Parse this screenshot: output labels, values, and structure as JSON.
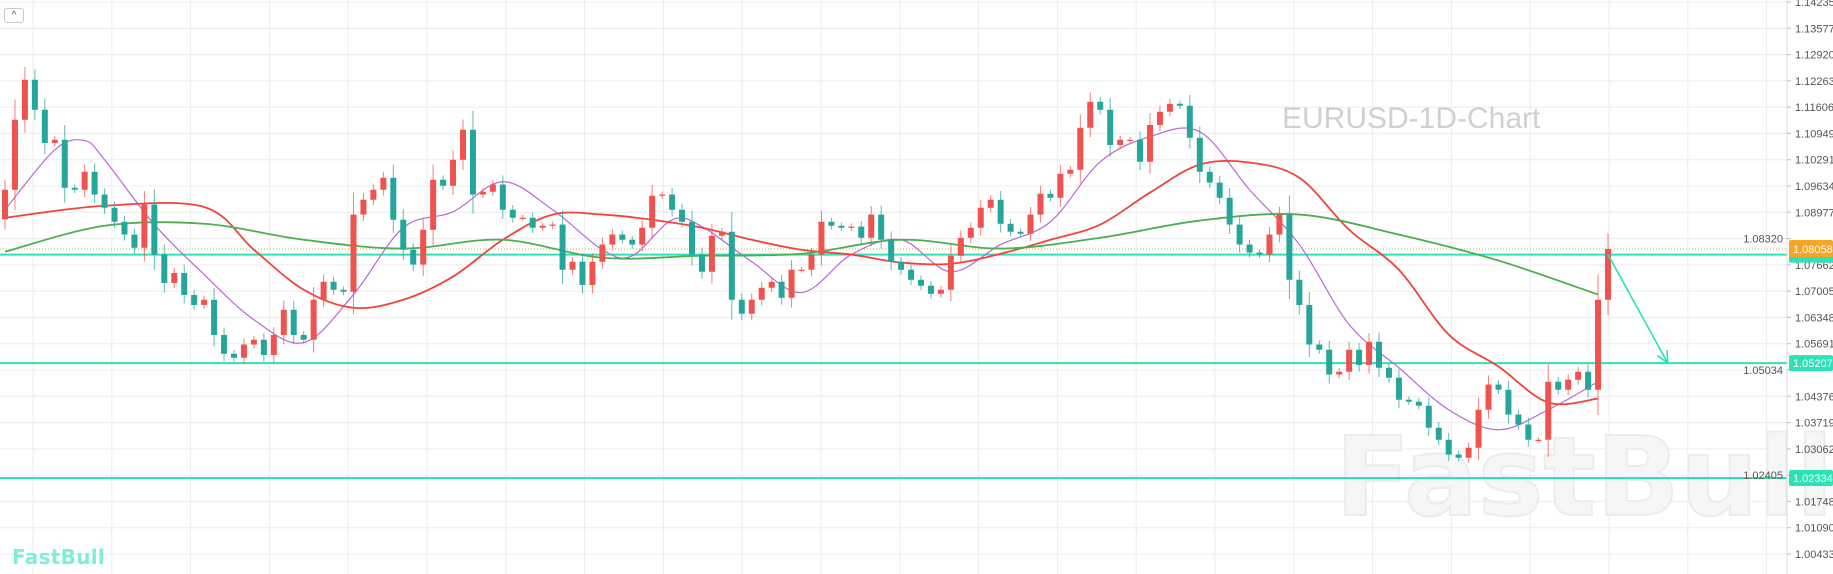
{
  "controls": {
    "collapse_icon": "chevron-up-icon",
    "collapse_glyph": "^"
  },
  "brand": {
    "logo_text": "FastBull",
    "logo_color": "#7eefd6",
    "watermark": "FastBull"
  },
  "chart_data": {
    "type": "candlestick",
    "title": "EURUSD-1D-Chart",
    "colors": {
      "up": "#ef5350",
      "down": "#26a69a"
    },
    "ylim": [
      1.00433,
      1.14235
    ],
    "grid": true,
    "y_ticks": [
      "1.14235",
      "1.13577",
      "1.12920",
      "1.12263",
      "1.11606",
      "1.10949",
      "1.10291",
      "1.09634",
      "1.08977",
      "1.08320",
      "1.07662",
      "1.07005",
      "1.06348",
      "1.05691",
      "1.05034",
      "1.04376",
      "1.03719",
      "1.03062",
      "1.02405",
      "1.01748",
      "1.01090",
      "1.00433"
    ],
    "first_open": 1.088,
    "closes": [
      1.0954,
      1.1129,
      1.1229,
      1.1154,
      1.1071,
      1.1079,
      1.0959,
      1.0954,
      1.0999,
      1.0942,
      1.0909,
      1.0874,
      1.0842,
      1.0809,
      1.0917,
      1.0792,
      1.0721,
      1.0746,
      1.0691,
      1.0666,
      1.0679,
      1.0591,
      1.0544,
      1.0534,
      1.0567,
      1.0579,
      1.0541,
      1.0591,
      1.0654,
      1.0591,
      1.0579,
      1.0679,
      1.0724,
      1.0704,
      1.0699,
      1.0892,
      1.0929,
      1.0954,
      1.0984,
      1.0879,
      1.0804,
      1.0767,
      1.0854,
      1.0979,
      1.0964,
      1.1029,
      1.1104,
      1.0942,
      1.0949,
      1.0967,
      1.0904,
      1.0884,
      1.0884,
      1.0859,
      1.0864,
      1.0867,
      1.0754,
      1.0774,
      1.0716,
      1.0774,
      1.0817,
      1.0842,
      1.0829,
      1.0817,
      1.0859,
      1.0939,
      1.0942,
      1.0904,
      1.0874,
      1.0792,
      1.0749,
      1.0839,
      1.0849,
      1.0679,
      1.0644,
      1.0679,
      1.0709,
      1.0724,
      1.0684,
      1.0754,
      1.0754,
      1.0792,
      1.0874,
      1.0864,
      1.0859,
      1.0862,
      1.0834,
      1.0892,
      1.0829,
      1.0774,
      1.0754,
      1.0729,
      1.0714,
      1.0694,
      1.0704,
      1.0789,
      1.0834,
      1.0859,
      1.0909,
      1.0929,
      1.0869,
      1.0849,
      1.0844,
      1.0892,
      1.0944,
      1.0934,
      1.0994,
      1.1004,
      1.1109,
      1.1174,
      1.1154,
      1.1066,
      1.1079,
      1.1079,
      1.1024,
      1.1116,
      1.1149,
      1.1169,
      1.1164,
      1.1084,
      1.0999,
      1.0972,
      1.0934,
      1.0867,
      1.0817,
      1.0797,
      1.0792,
      1.0842,
      1.0892,
      1.0729,
      1.0666,
      1.0567,
      1.0554,
      1.0492,
      1.0499,
      1.0554,
      1.0516,
      1.0574,
      1.0509,
      1.0484,
      1.0429,
      1.0424,
      1.0414,
      1.0359,
      1.0329,
      1.0292,
      1.0284,
      1.0309,
      1.0404,
      1.0467,
      1.0454,
      1.0392,
      1.0367,
      1.0329,
      1.0329,
      1.0474,
      1.0454,
      1.0479,
      1.0499,
      1.0454,
      1.0679,
      1.0806
    ],
    "moving_averages": [
      {
        "color": "#b968d6",
        "points": [
          [
            0,
            1.0904
          ],
          [
            5,
            1.1054
          ],
          [
            8,
            1.1077
          ],
          [
            10,
            1.1029
          ],
          [
            15,
            1.0867
          ],
          [
            20,
            1.0742
          ],
          [
            25,
            1.0629
          ],
          [
            30,
            1.0572
          ],
          [
            35,
            1.0692
          ],
          [
            40,
            1.0859
          ],
          [
            45,
            1.0899
          ],
          [
            50,
            1.0974
          ],
          [
            55,
            1.0904
          ],
          [
            60,
            1.0804
          ],
          [
            63,
            1.0789
          ],
          [
            67,
            1.0879
          ],
          [
            70,
            1.0862
          ],
          [
            75,
            1.0774
          ],
          [
            80,
            1.0697
          ],
          [
            85,
            1.0792
          ],
          [
            90,
            1.0829
          ],
          [
            95,
            1.0749
          ],
          [
            100,
            1.0817
          ],
          [
            105,
            1.0874
          ],
          [
            110,
            1.1024
          ],
          [
            115,
            1.1087
          ],
          [
            120,
            1.1099
          ],
          [
            125,
            1.0954
          ],
          [
            130,
            1.0817
          ],
          [
            135,
            1.0617
          ],
          [
            140,
            1.0509
          ],
          [
            145,
            1.0404
          ],
          [
            150,
            1.0354
          ],
          [
            155,
            1.0404
          ],
          [
            160,
            1.0474
          ]
        ]
      },
      {
        "color": "#f0443a",
        "points": [
          [
            0,
            1.0884
          ],
          [
            10,
            1.0914
          ],
          [
            20,
            1.0911
          ],
          [
            25,
            1.0804
          ],
          [
            30,
            1.0704
          ],
          [
            35,
            1.0659
          ],
          [
            40,
            1.0679
          ],
          [
            45,
            1.0737
          ],
          [
            50,
            1.0829
          ],
          [
            55,
            1.0892
          ],
          [
            60,
            1.0892
          ],
          [
            65,
            1.0879
          ],
          [
            70,
            1.0859
          ],
          [
            75,
            1.0829
          ],
          [
            80,
            1.0804
          ],
          [
            85,
            1.0792
          ],
          [
            90,
            1.0772
          ],
          [
            95,
            1.0769
          ],
          [
            100,
            1.0794
          ],
          [
            105,
            1.0829
          ],
          [
            110,
            1.0867
          ],
          [
            115,
            1.0947
          ],
          [
            120,
            1.1017
          ],
          [
            125,
            1.1022
          ],
          [
            130,
            1.0984
          ],
          [
            135,
            1.0854
          ],
          [
            140,
            1.0754
          ],
          [
            145,
            1.0592
          ],
          [
            150,
            1.0512
          ],
          [
            155,
            1.0422
          ],
          [
            160,
            1.0432
          ]
        ]
      },
      {
        "color": "#4caf50",
        "points": [
          [
            0,
            1.0799
          ],
          [
            10,
            1.0864
          ],
          [
            20,
            1.0869
          ],
          [
            30,
            1.0829
          ],
          [
            40,
            1.0807
          ],
          [
            50,
            1.0829
          ],
          [
            60,
            1.0784
          ],
          [
            70,
            1.0789
          ],
          [
            80,
            1.0794
          ],
          [
            90,
            1.0829
          ],
          [
            100,
            1.0807
          ],
          [
            110,
            1.0834
          ],
          [
            120,
            1.0877
          ],
          [
            130,
            1.0892
          ],
          [
            140,
            1.0842
          ],
          [
            150,
            1.0777
          ],
          [
            160,
            1.0692
          ]
        ]
      }
    ],
    "horizontal_levels": [
      {
        "value": 1.0792,
        "label": "",
        "color": "#2de2b6"
      },
      {
        "value": 1.05207,
        "label": "1.05207",
        "color": "#2de2b6"
      },
      {
        "value": 1.02334,
        "label": "1.02334",
        "color": "#2de2b6"
      }
    ],
    "current_price": {
      "value": 1.08058,
      "label": "1.08058",
      "color": "#f5a623"
    },
    "projection_arrow": {
      "from": [
        161,
        1.0792
      ],
      "to": [
        167,
        1.05207
      ],
      "color": "#2de2b6"
    }
  }
}
